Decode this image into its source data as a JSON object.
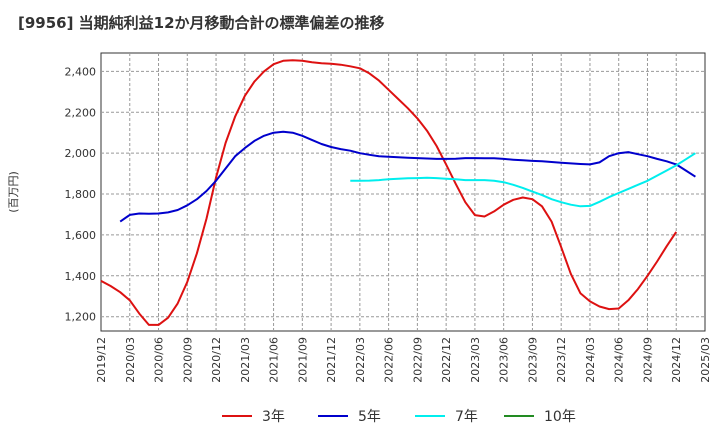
{
  "chart_data": {
    "type": "line",
    "title": "[9956]  当期純利益12か月移動合計の標準偏差の推移",
    "ylabel": "(百万円)",
    "xlabel": "",
    "ylim": [
      1130,
      2490
    ],
    "y_ticks": [
      1200,
      1400,
      1600,
      1800,
      2000,
      2200,
      2400
    ],
    "y_tick_labels": [
      "1,200",
      "1,400",
      "1,600",
      "1,800",
      "2,000",
      "2,200",
      "2,400"
    ],
    "x_ticks": [
      "2019/12",
      "2020/03",
      "2020/06",
      "2020/09",
      "2020/12",
      "2021/03",
      "2021/06",
      "2021/09",
      "2021/12",
      "2022/03",
      "2022/06",
      "2022/09",
      "2022/12",
      "2023/03",
      "2023/06",
      "2023/09",
      "2023/12",
      "2024/03",
      "2024/06",
      "2024/09",
      "2024/12",
      "2025/03"
    ],
    "grid": true,
    "legend_position": "bottom",
    "series": [
      {
        "name": "3年",
        "color": "#dd1111",
        "start": "2019/12",
        "values": [
          1375,
          1350,
          1320,
          1280,
          1215,
          1160,
          1160,
          1195,
          1265,
          1370,
          1510,
          1680,
          1880,
          2050,
          2180,
          2280,
          2350,
          2400,
          2435,
          2452,
          2455,
          2452,
          2445,
          2440,
          2437,
          2433,
          2425,
          2415,
          2390,
          2355,
          2310,
          2265,
          2220,
          2170,
          2110,
          2035,
          1945,
          1850,
          1760,
          1697,
          1690,
          1715,
          1748,
          1772,
          1783,
          1775,
          1740,
          1665,
          1540,
          1410,
          1315,
          1275,
          1250,
          1237,
          1240,
          1280,
          1335,
          1400,
          1470,
          1545,
          1615
        ]
      },
      {
        "name": "5年",
        "color": "#0000cc",
        "start": "2020/02",
        "values": [
          1665,
          1698,
          1705,
          1704,
          1705,
          1710,
          1722,
          1745,
          1775,
          1815,
          1865,
          1925,
          1985,
          2025,
          2060,
          2085,
          2100,
          2105,
          2100,
          2085,
          2065,
          2045,
          2030,
          2020,
          2012,
          2000,
          1992,
          1985,
          1982,
          1980,
          1978,
          1976,
          1974,
          1972,
          1972,
          1973,
          1976,
          1976,
          1975,
          1975,
          1972,
          1968,
          1965,
          1962,
          1960,
          1957,
          1953,
          1950,
          1947,
          1945,
          1955,
          1985,
          2000,
          2005,
          1995,
          1985,
          1972,
          1960,
          1945,
          1915,
          1885
        ]
      },
      {
        "name": "7年",
        "color": "#00eeee",
        "start": "2022/02",
        "values": [
          1865,
          1865,
          1866,
          1868,
          1872,
          1875,
          1877,
          1878,
          1880,
          1878,
          1875,
          1872,
          1868,
          1868,
          1868,
          1865,
          1858,
          1845,
          1830,
          1812,
          1795,
          1775,
          1760,
          1748,
          1740,
          1742,
          1762,
          1785,
          1805,
          1825,
          1845,
          1865,
          1890,
          1915,
          1940,
          1970,
          2000
        ]
      },
      {
        "name": "10年",
        "color": "#228b22",
        "start": "2024/12",
        "values": []
      }
    ]
  }
}
